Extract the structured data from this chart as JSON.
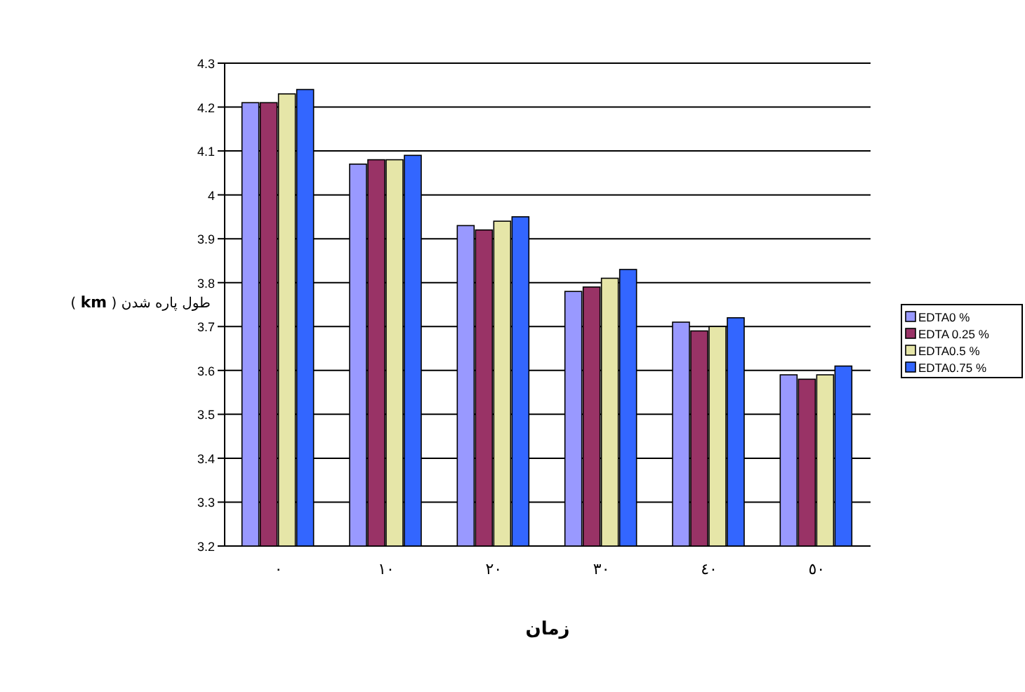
{
  "chart_data": {
    "type": "bar",
    "xlabel": "زمان",
    "ylabel": "طول پاره شدن ( **km** )",
    "categories": [
      "٠",
      "١٠",
      "٢٠",
      "٣٠",
      "٤٠",
      "٥٠"
    ],
    "series": [
      {
        "name": "EDTA0 %",
        "color": "#9999ff",
        "values": [
          4.21,
          4.07,
          3.93,
          3.78,
          3.71,
          3.59
        ]
      },
      {
        "name": "EDTA 0.25 %",
        "color": "#993366",
        "values": [
          4.21,
          4.08,
          3.92,
          3.79,
          3.69,
          3.58
        ]
      },
      {
        "name": "EDTA0.5 %",
        "color": "#e6e6a8",
        "values": [
          4.23,
          4.08,
          3.94,
          3.81,
          3.7,
          3.59
        ]
      },
      {
        "name": "EDTA0.75 %",
        "color": "#3366ff",
        "values": [
          4.24,
          4.09,
          3.95,
          3.83,
          3.72,
          3.61
        ]
      }
    ],
    "ylim": [
      3.2,
      4.3
    ],
    "yticks": [
      3.2,
      3.3,
      3.4,
      3.5,
      3.6,
      3.7,
      3.8,
      3.9,
      4,
      4.1,
      4.2,
      4.3
    ],
    "grid": "y",
    "legend": "right"
  }
}
